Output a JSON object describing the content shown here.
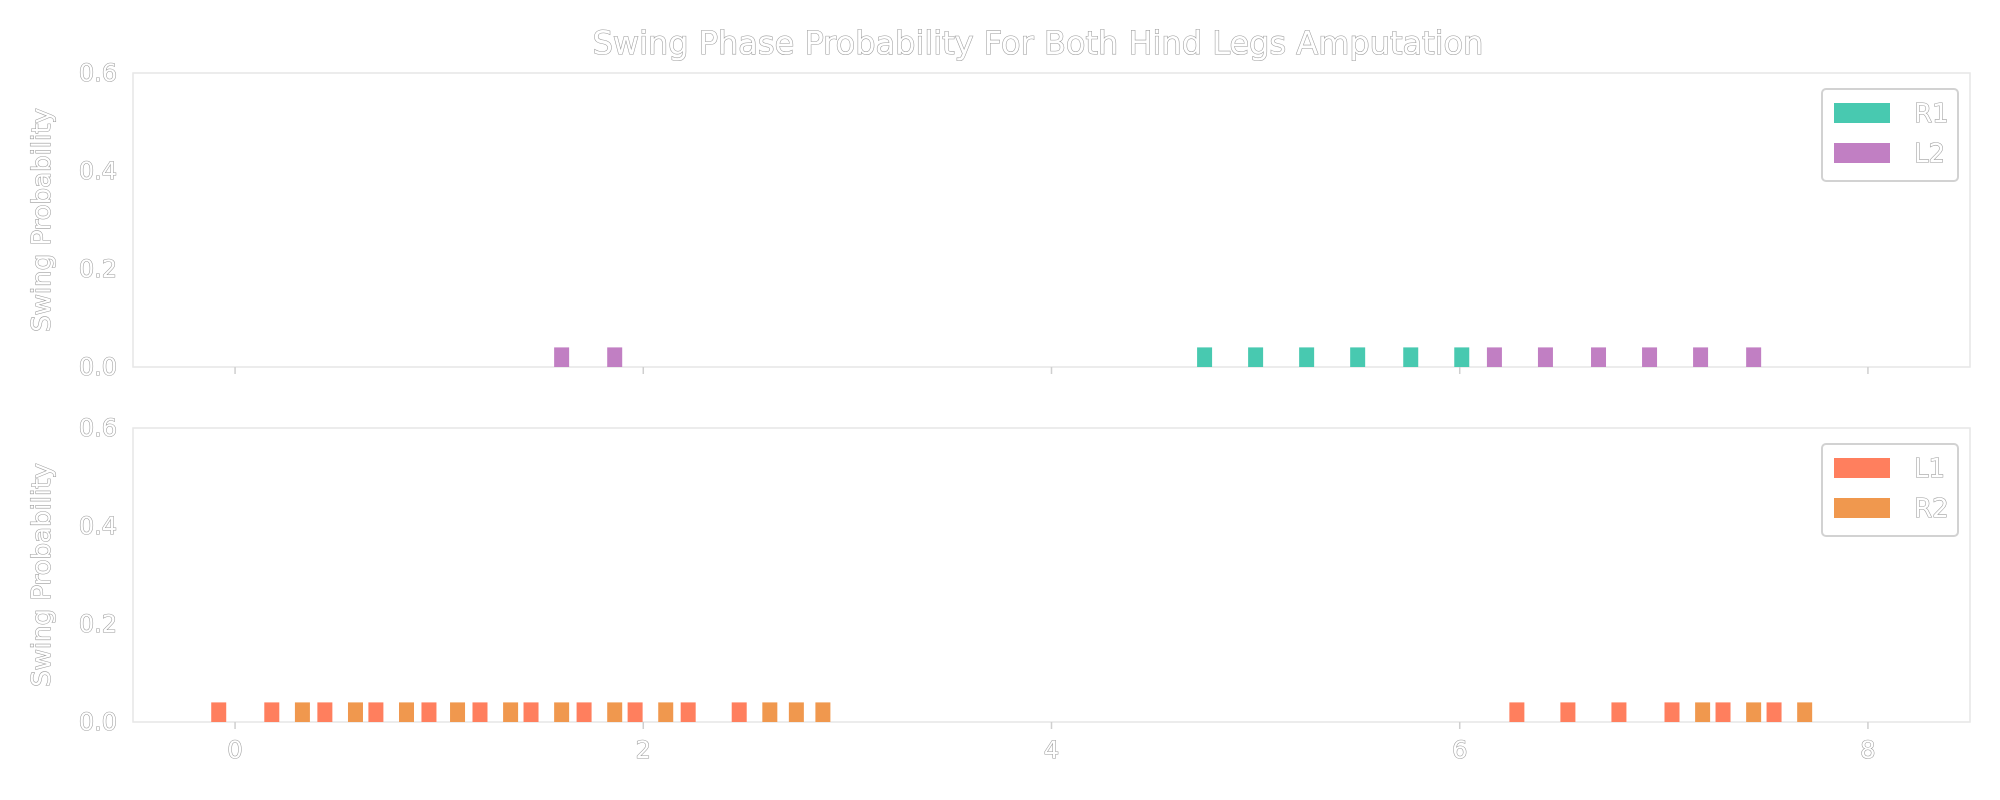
{
  "title": "Swing Phase Probability For Both Hind Legs Amputation",
  "colors": {
    "R1": "#48c9b0",
    "L2": "#c17fc3",
    "L1": "#ff7f5e",
    "R2": "#f0984e"
  },
  "chart_data": [
    {
      "type": "bar",
      "ylabel": "Swing Probability",
      "xlim": [
        -0.5,
        8.5
      ],
      "ylim": [
        0.0,
        0.6
      ],
      "xticks": [
        0,
        2,
        4,
        6,
        8
      ],
      "yticks": [
        "0.0",
        "0.2",
        "0.4",
        "0.6"
      ],
      "show_xtick_labels": false,
      "legend": "top-right",
      "series": [
        {
          "name": "R1",
          "color": "#48c9b0",
          "x": [
            4.75,
            5.0,
            5.25,
            5.5,
            5.76,
            6.01
          ],
          "values": [
            0.04,
            0.04,
            0.04,
            0.04,
            0.04,
            0.04
          ]
        },
        {
          "name": "L2",
          "color": "#c17fc3",
          "x": [
            1.6,
            1.86,
            6.17,
            6.42,
            6.68,
            6.93,
            7.18,
            7.44
          ],
          "values": [
            0.04,
            0.04,
            0.04,
            0.04,
            0.04,
            0.04,
            0.04,
            0.04
          ]
        }
      ]
    },
    {
      "type": "bar",
      "ylabel": "Swing Probability",
      "xlim": [
        -0.5,
        8.5
      ],
      "ylim": [
        0.0,
        0.6
      ],
      "xticks": [
        0,
        2,
        4,
        6,
        8
      ],
      "yticks": [
        "0.0",
        "0.2",
        "0.4",
        "0.6"
      ],
      "show_xtick_labels": true,
      "legend": "top-right",
      "series": [
        {
          "name": "L1",
          "color": "#ff7f5e",
          "x": [
            -0.08,
            0.18,
            0.44,
            0.69,
            0.95,
            1.2,
            1.45,
            1.71,
            1.96,
            2.22,
            2.47,
            6.28,
            6.53,
            6.78,
            7.04,
            7.29,
            7.54
          ],
          "values": [
            0.04,
            0.04,
            0.04,
            0.04,
            0.04,
            0.04,
            0.04,
            0.04,
            0.04,
            0.04,
            0.04,
            0.04,
            0.04,
            0.04,
            0.04,
            0.04,
            0.04
          ]
        },
        {
          "name": "R2",
          "color": "#f0984e",
          "x": [
            0.33,
            0.59,
            0.84,
            1.09,
            1.35,
            1.6,
            1.86,
            2.11,
            2.62,
            2.75,
            2.88,
            7.19,
            7.44,
            7.69
          ],
          "values": [
            0.04,
            0.04,
            0.04,
            0.04,
            0.04,
            0.04,
            0.04,
            0.04,
            0.04,
            0.04,
            0.04,
            0.04,
            0.04,
            0.04
          ]
        }
      ]
    }
  ]
}
